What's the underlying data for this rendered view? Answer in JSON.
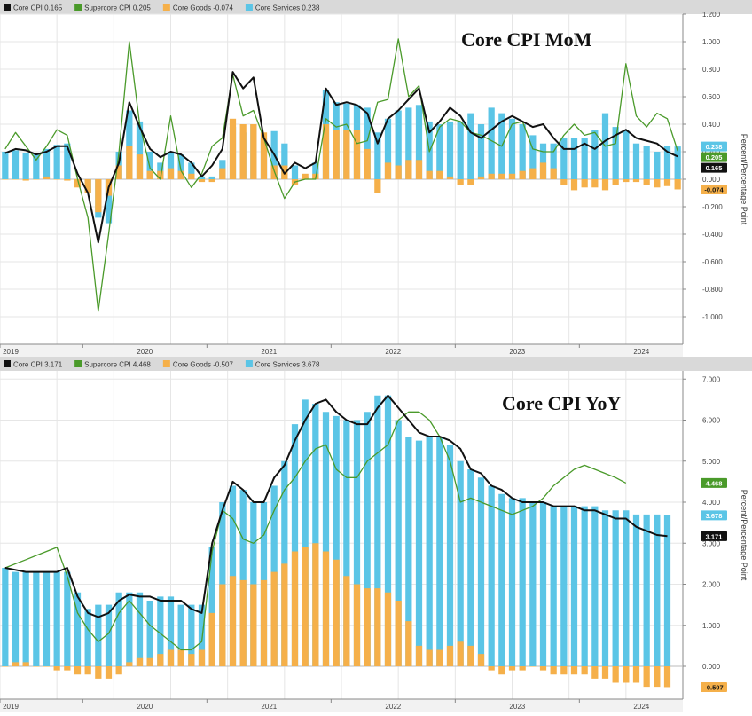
{
  "colors": {
    "core_cpi": "#111111",
    "supercore": "#4a9a2a",
    "goods": "#f5b04a",
    "services": "#5bc5e6",
    "legend_bg": "#d9d9d9",
    "grid": "#e6e6e6",
    "axis_text": "#444444"
  },
  "chart_data": [
    {
      "type": "bar",
      "title": "Core CPI MoM",
      "ylabel": "Percent/Percentage Point",
      "ylim": [
        -1.2,
        1.2
      ],
      "yticks": [
        "1.200",
        "1.000",
        "0.800",
        "0.600",
        "0.400",
        "0.200",
        "0.000",
        "-0.200",
        "-0.400",
        "-0.600",
        "-0.800",
        "-1.000"
      ],
      "ytick_values": [
        1.2,
        1.0,
        0.8,
        0.6,
        0.4,
        0.2,
        0.0,
        -0.2,
        -0.4,
        -0.6,
        -0.8,
        -1.0
      ],
      "xticks": [
        "2019",
        "2020",
        "2021",
        "2022",
        "2023",
        "2024"
      ],
      "xtick_index": [
        0,
        8,
        20,
        32,
        44,
        56
      ],
      "legend": [
        {
          "label": "Core CPI",
          "value": "0.165",
          "color_key": "core_cpi"
        },
        {
          "label": "Supercore CPI",
          "value": "0.205",
          "color_key": "supercore"
        },
        {
          "label": "Core Goods",
          "value": "-0.074",
          "color_key": "goods"
        },
        {
          "label": "Core Services",
          "value": "0.238",
          "color_key": "services"
        }
      ],
      "end_labels": [
        {
          "value": 0.238,
          "text": "0.238",
          "color_key": "services"
        },
        {
          "value": 0.205,
          "text": "0.205",
          "color_key": "supercore"
        },
        {
          "value": 0.165,
          "text": "0.165",
          "color_key": "core_cpi"
        },
        {
          "value": -0.074,
          "text": "-0.074",
          "color_key": "goods"
        }
      ],
      "series": [
        {
          "name": "Core Services",
          "kind": "bar",
          "color_key": "services",
          "values": [
            0.2,
            0.21,
            0.19,
            0.18,
            0.22,
            0.25,
            0.26,
            -0.02,
            -0.1,
            -0.28,
            -0.32,
            0.2,
            0.5,
            0.42,
            0.2,
            0.12,
            0.2,
            0.18,
            0.12,
            0.02,
            0.02,
            0.14,
            0.38,
            0.34,
            0.4,
            0.3,
            0.35,
            0.26,
            0.1,
            0.02,
            0.12,
            0.65,
            0.56,
            0.55,
            0.54,
            0.52,
            0.34,
            0.44,
            0.5,
            0.52,
            0.54,
            0.42,
            0.4,
            0.42,
            0.42,
            0.48,
            0.4,
            0.52,
            0.48,
            0.44,
            0.4,
            0.32,
            0.26,
            0.26,
            0.3,
            0.3,
            0.3,
            0.36,
            0.48,
            0.38,
            0.36,
            0.26,
            0.24,
            0.2,
            0.24,
            0.238
          ]
        },
        {
          "name": "Core Goods",
          "kind": "bar",
          "color_key": "goods",
          "values": [
            0.0,
            0.0,
            -0.01,
            0.0,
            0.02,
            0.0,
            -0.01,
            -0.06,
            -0.1,
            -0.24,
            -0.12,
            0.1,
            0.24,
            0.18,
            0.06,
            0.06,
            0.08,
            0.06,
            0.04,
            -0.02,
            -0.02,
            0.08,
            0.44,
            0.4,
            0.4,
            0.34,
            0.1,
            0.1,
            -0.04,
            0.04,
            0.04,
            0.4,
            0.36,
            0.36,
            0.36,
            0.22,
            -0.1,
            0.12,
            0.1,
            0.14,
            0.14,
            0.06,
            0.06,
            0.02,
            -0.04,
            -0.04,
            0.02,
            0.04,
            0.04,
            0.04,
            0.06,
            0.08,
            0.12,
            0.08,
            -0.04,
            -0.08,
            -0.06,
            -0.06,
            -0.08,
            -0.04,
            -0.02,
            -0.02,
            -0.04,
            -0.06,
            -0.05,
            -0.074
          ]
        },
        {
          "name": "Core CPI",
          "kind": "line",
          "color_key": "core_cpi",
          "values": [
            0.19,
            0.22,
            0.21,
            0.18,
            0.2,
            0.24,
            0.24,
            0.04,
            -0.1,
            -0.46,
            -0.06,
            0.12,
            0.56,
            0.38,
            0.22,
            0.16,
            0.2,
            0.18,
            0.12,
            0.02,
            0.1,
            0.22,
            0.78,
            0.66,
            0.74,
            0.3,
            0.18,
            0.04,
            0.12,
            0.08,
            0.12,
            0.66,
            0.54,
            0.56,
            0.54,
            0.48,
            0.26,
            0.44,
            0.5,
            0.58,
            0.66,
            0.34,
            0.42,
            0.52,
            0.46,
            0.34,
            0.3,
            0.36,
            0.42,
            0.46,
            0.42,
            0.38,
            0.4,
            0.3,
            0.22,
            0.22,
            0.26,
            0.22,
            0.28,
            0.32,
            0.36,
            0.3,
            0.28,
            0.26,
            0.2,
            0.165
          ]
        },
        {
          "name": "Supercore CPI",
          "kind": "line",
          "color_key": "supercore",
          "values": [
            0.22,
            0.34,
            0.24,
            0.14,
            0.24,
            0.36,
            0.32,
            0.0,
            -0.28,
            -0.96,
            -0.4,
            0.2,
            1.0,
            0.4,
            0.08,
            0.0,
            0.46,
            0.06,
            -0.06,
            0.04,
            0.24,
            0.3,
            0.76,
            0.46,
            0.5,
            0.3,
            0.06,
            -0.14,
            -0.02,
            0.0,
            0.0,
            0.44,
            0.38,
            0.4,
            0.26,
            0.28,
            0.56,
            0.58,
            1.02,
            0.6,
            0.68,
            0.2,
            0.38,
            0.44,
            0.42,
            0.34,
            0.32,
            0.28,
            0.24,
            0.4,
            0.42,
            0.22,
            0.2,
            0.2,
            0.32,
            0.4,
            0.32,
            0.34,
            0.24,
            0.26,
            0.84,
            0.46,
            0.38,
            0.48,
            0.44,
            0.205
          ]
        }
      ]
    },
    {
      "type": "bar",
      "title": "Core CPI YoY",
      "ylabel": "Percent/Percentage Point",
      "ylim": [
        -0.8,
        7.2
      ],
      "yticks": [
        "7.000",
        "6.000",
        "5.000",
        "4.000",
        "3.000",
        "2.000",
        "1.000",
        "0.000"
      ],
      "ytick_values": [
        7,
        6,
        5,
        4,
        3,
        2,
        1,
        0
      ],
      "xticks": [
        "2019",
        "2020",
        "2021",
        "2022",
        "2023",
        "2024"
      ],
      "xtick_index": [
        0,
        8,
        20,
        32,
        44,
        56
      ],
      "legend": [
        {
          "label": "Core CPI",
          "value": "3.171",
          "color_key": "core_cpi"
        },
        {
          "label": "Supercore CPI",
          "value": "4.468",
          "color_key": "supercore"
        },
        {
          "label": "Core Goods",
          "value": "-0.507",
          "color_key": "goods"
        },
        {
          "label": "Core Services",
          "value": "3.678",
          "color_key": "services"
        }
      ],
      "end_labels": [
        {
          "value": 4.468,
          "text": "4.468",
          "color_key": "supercore"
        },
        {
          "value": 3.678,
          "text": "3.678",
          "color_key": "services"
        },
        {
          "value": 3.171,
          "text": "3.171",
          "color_key": "core_cpi"
        },
        {
          "value": -0.507,
          "text": "-0.507",
          "color_key": "goods"
        }
      ],
      "series": [
        {
          "name": "Core Services",
          "kind": "bar",
          "color_key": "services",
          "values": [
            2.4,
            2.3,
            2.3,
            2.3,
            2.3,
            2.3,
            2.3,
            1.8,
            1.4,
            1.5,
            1.5,
            1.8,
            1.8,
            1.8,
            1.6,
            1.7,
            1.7,
            1.5,
            1.5,
            1.5,
            2.9,
            4.0,
            4.4,
            4.3,
            4.0,
            4.0,
            4.4,
            5.0,
            5.9,
            6.5,
            6.4,
            6.2,
            6.1,
            6.0,
            6.0,
            6.2,
            6.6,
            6.6,
            6.0,
            5.6,
            5.5,
            5.6,
            5.6,
            5.4,
            5.0,
            4.8,
            4.6,
            4.4,
            4.2,
            4.1,
            4.1,
            4.0,
            4.0,
            3.9,
            3.9,
            3.9,
            3.9,
            3.9,
            3.8,
            3.8,
            3.8,
            3.7,
            3.7,
            3.7,
            3.678
          ]
        },
        {
          "name": "Core Goods",
          "kind": "bar",
          "color_key": "goods",
          "values": [
            0.0,
            0.1,
            0.1,
            0.0,
            0.0,
            -0.1,
            -0.1,
            -0.2,
            -0.2,
            -0.3,
            -0.3,
            -0.2,
            0.1,
            0.2,
            0.2,
            0.3,
            0.4,
            0.4,
            0.3,
            0.4,
            1.3,
            2.0,
            2.2,
            2.1,
            2.0,
            2.1,
            2.3,
            2.5,
            2.8,
            2.9,
            3.0,
            2.8,
            2.6,
            2.2,
            2.0,
            1.9,
            1.9,
            1.8,
            1.6,
            1.1,
            0.5,
            0.4,
            0.4,
            0.5,
            0.6,
            0.5,
            0.3,
            -0.1,
            -0.2,
            -0.1,
            -0.1,
            0.0,
            -0.1,
            -0.2,
            -0.2,
            -0.2,
            -0.2,
            -0.3,
            -0.3,
            -0.4,
            -0.4,
            -0.4,
            -0.5,
            -0.5,
            -0.507
          ]
        },
        {
          "name": "Core CPI",
          "kind": "line",
          "color_key": "core_cpi",
          "values": [
            2.4,
            2.35,
            2.3,
            2.3,
            2.3,
            2.3,
            2.4,
            1.7,
            1.3,
            1.2,
            1.3,
            1.6,
            1.75,
            1.7,
            1.7,
            1.6,
            1.6,
            1.6,
            1.4,
            1.3,
            3.0,
            3.8,
            4.5,
            4.3,
            4.0,
            4.0,
            4.6,
            4.9,
            5.5,
            6.0,
            6.4,
            6.5,
            6.2,
            6.0,
            5.9,
            5.9,
            6.3,
            6.6,
            6.3,
            6.0,
            5.7,
            5.6,
            5.6,
            5.5,
            5.3,
            4.8,
            4.7,
            4.4,
            4.3,
            4.1,
            4.0,
            4.0,
            4.0,
            3.9,
            3.9,
            3.9,
            3.8,
            3.8,
            3.7,
            3.6,
            3.6,
            3.4,
            3.3,
            3.2,
            3.171
          ]
        },
        {
          "name": "Supercore CPI",
          "kind": "line",
          "color_key": "supercore",
          "values": [
            2.4,
            2.5,
            2.6,
            2.7,
            2.8,
            2.9,
            2.2,
            1.3,
            0.9,
            0.6,
            0.8,
            1.3,
            1.6,
            1.3,
            1.0,
            0.8,
            0.6,
            0.4,
            0.4,
            0.6,
            2.8,
            3.8,
            3.6,
            3.1,
            3.0,
            3.2,
            3.8,
            4.3,
            4.6,
            5.0,
            5.3,
            5.4,
            4.8,
            4.6,
            4.6,
            5.0,
            5.2,
            5.4,
            6.0,
            6.2,
            6.2,
            6.0,
            5.6,
            5.0,
            4.0,
            4.1,
            4.0,
            3.9,
            3.8,
            3.7,
            3.8,
            3.9,
            4.1,
            4.4,
            4.6,
            4.8,
            4.9,
            4.8,
            4.7,
            4.6,
            4.468
          ]
        }
      ]
    }
  ]
}
